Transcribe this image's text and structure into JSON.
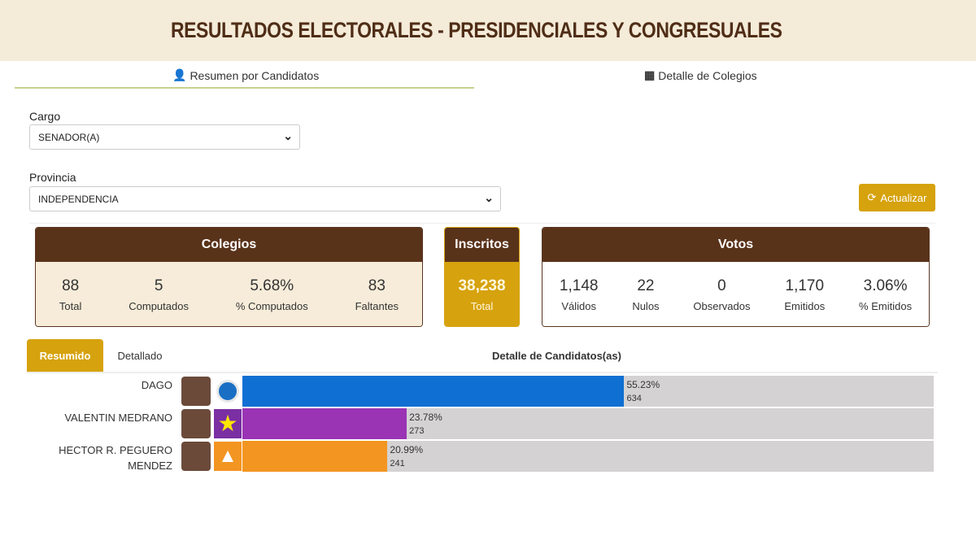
{
  "header": {
    "title": "RESULTADOS ELECTORALES - PRESIDENCIALES Y CONGRESUALES"
  },
  "tabs": [
    {
      "label": "Resumen por Candidatos",
      "icon": "user-icon"
    },
    {
      "label": "Detalle de Colegios",
      "icon": "building-icon"
    }
  ],
  "filters": {
    "cargo_label": "Cargo",
    "cargo_value": "SENADOR(A)",
    "provincia_label": "Provincia",
    "provincia_value": "INDEPENDENCIA"
  },
  "refresh_button": "Actualizar",
  "colegios": {
    "title": "Colegios",
    "stats": [
      {
        "value": "88",
        "label": "Total"
      },
      {
        "value": "5",
        "label": "Computados"
      },
      {
        "value": "5.68%",
        "label": "% Computados"
      },
      {
        "value": "83",
        "label": "Faltantes"
      }
    ]
  },
  "inscritos": {
    "title": "Inscritos",
    "value": "38,238",
    "label": "Total"
  },
  "votos": {
    "title": "Votos",
    "stats": [
      {
        "value": "1,148",
        "label": "Válidos"
      },
      {
        "value": "22",
        "label": "Nulos"
      },
      {
        "value": "0",
        "label": "Observados"
      },
      {
        "value": "1,170",
        "label": "Emitidos"
      },
      {
        "value": "3.06%",
        "label": "% Emitidos"
      }
    ]
  },
  "view_tabs": {
    "resumido": "Resumido",
    "detallado": "Detallado",
    "title": "Detalle de Candidatos(as)"
  },
  "colors": {
    "brown": "#59321a",
    "gold": "#d6a20d"
  },
  "candidates": [
    {
      "name": "DAGO",
      "name2": "",
      "pct": "55.23%",
      "pct_value": 55.23,
      "votes": "634",
      "color": "#0f6fd2",
      "logo": "party-blue-logo-icon"
    },
    {
      "name": "VALENTIN MEDRANO",
      "name2": "",
      "pct": "23.78%",
      "pct_value": 23.78,
      "votes": "273",
      "color": "#9a34b5",
      "logo": "star-logo-icon"
    },
    {
      "name": "HECTOR R. PEGUERO",
      "name2": "MENDEZ",
      "pct": "20.99%",
      "pct_value": 20.99,
      "votes": "241",
      "color": "#f39521",
      "logo": "party-orange-logo-icon"
    }
  ]
}
